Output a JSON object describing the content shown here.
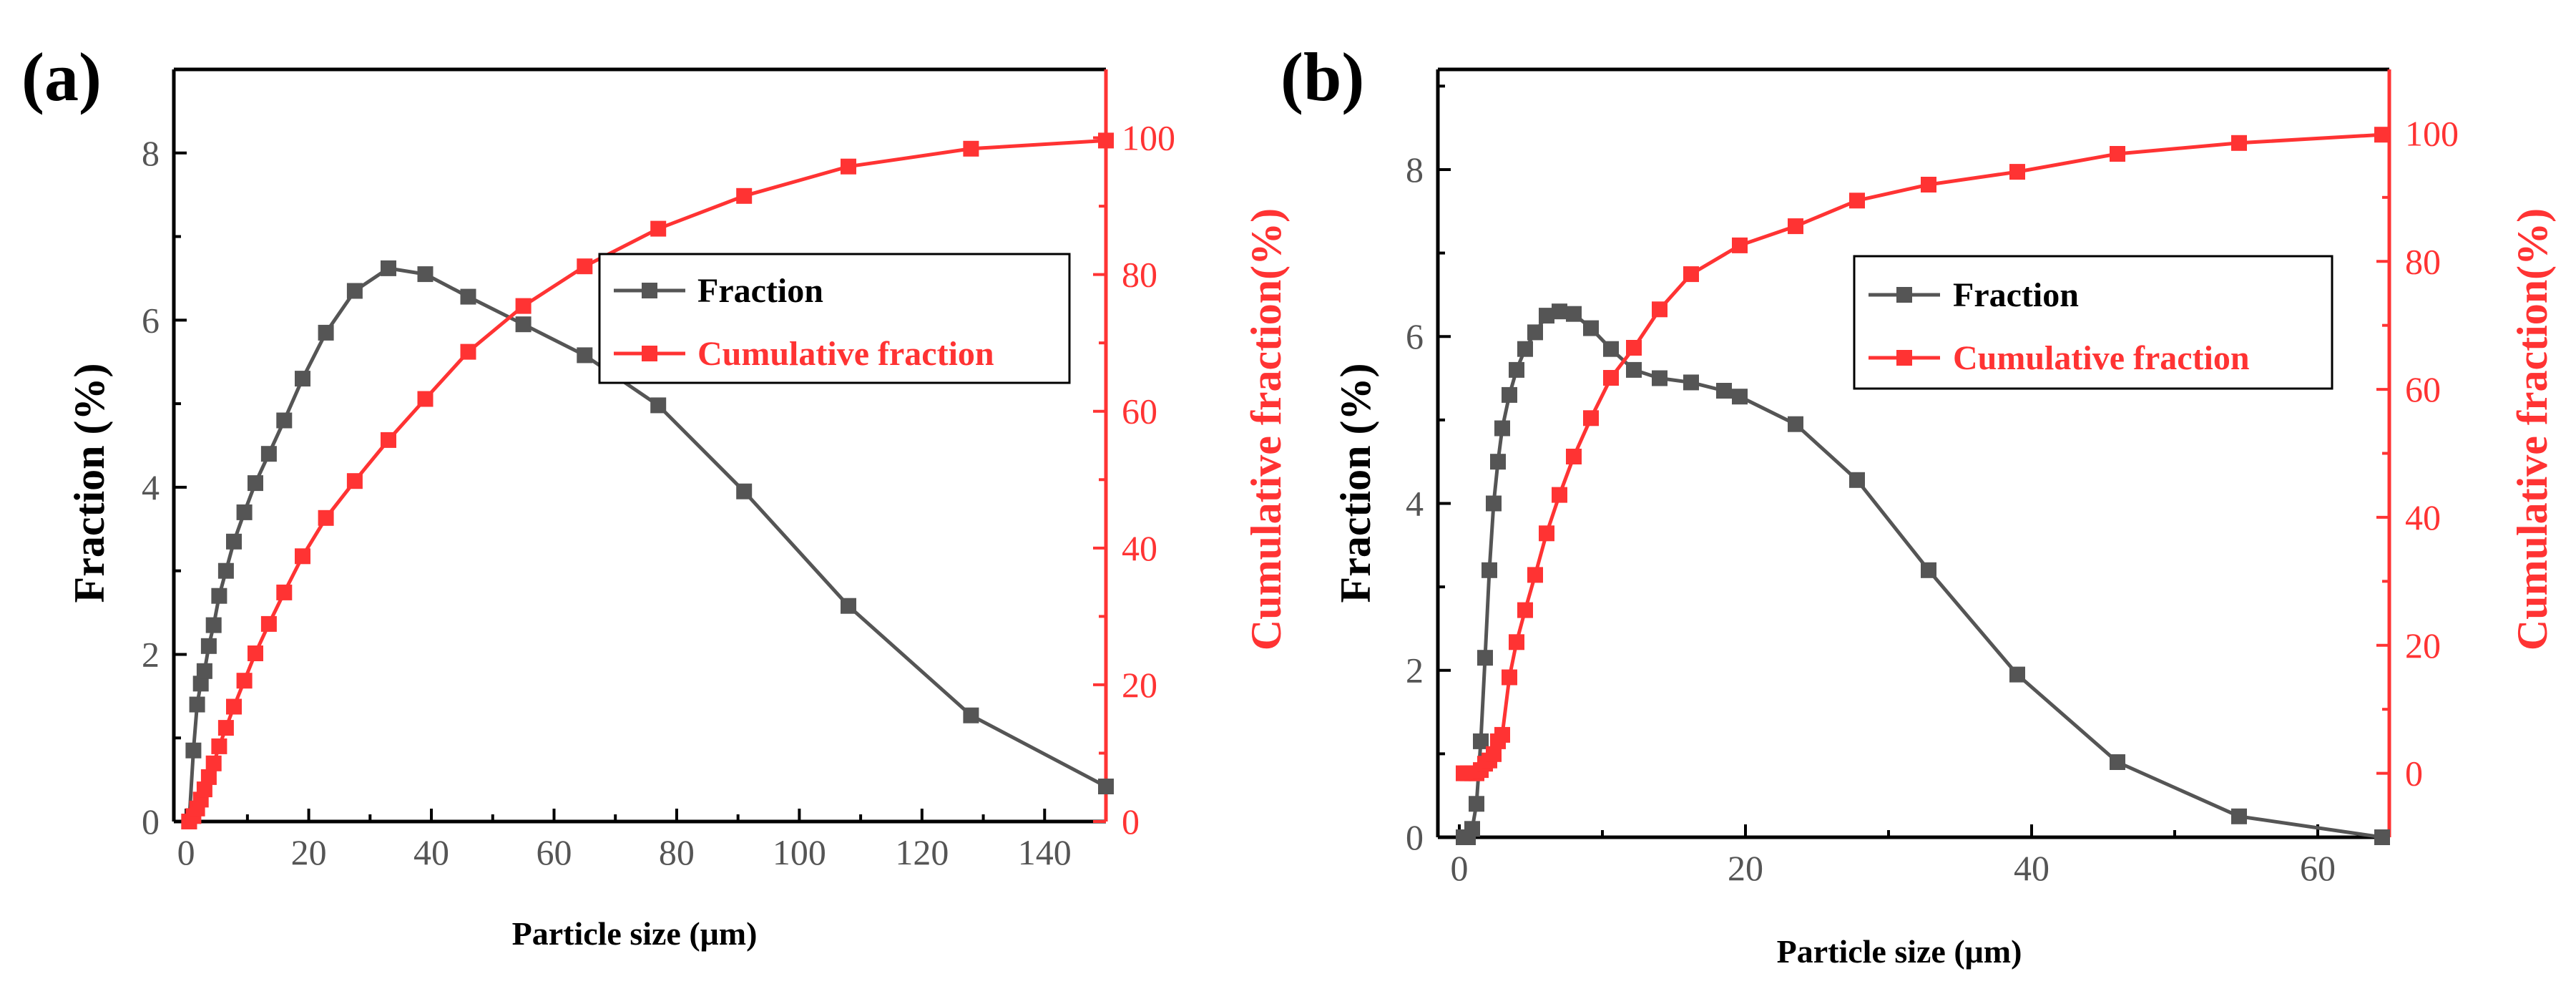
{
  "panels": [
    {
      "label": "(a)",
      "xlabel": "Particle size (μm)",
      "ylabel_left": "Fraction (%)",
      "ylabel_right": "Cumulative fraction(%)",
      "legend": {
        "series1": "Fraction",
        "series2": "Cumulative fraction"
      }
    },
    {
      "label": "(b)",
      "xlabel": "Particle size (μm)",
      "ylabel_left": "Fraction (%)",
      "ylabel_right": "Cumulative fraction(%)",
      "legend": {
        "series1": "Fraction",
        "series2": "Cumulative fraction"
      }
    }
  ],
  "colors": {
    "fraction": "#555555",
    "cumulative": "#ff3333",
    "axis": "#000000"
  },
  "chart_data": [
    {
      "type": "line",
      "xlabel": "Particle size (μm)",
      "ylabel": "Fraction (%)",
      "y2label": "Cumulative fraction(%)",
      "xlim": [
        -2,
        150
      ],
      "ylim": [
        0,
        9
      ],
      "y2lim": [
        0,
        110
      ],
      "xticks": [
        0,
        20,
        40,
        60,
        80,
        100,
        120,
        140
      ],
      "yticks": [
        0,
        2,
        4,
        6,
        8
      ],
      "y2ticks": [
        0,
        20,
        40,
        60,
        80,
        100
      ],
      "legend_position": "upper-right",
      "series": [
        {
          "name": "Fraction",
          "axis": "left",
          "marker": "square",
          "x": [
            0.5,
            1.2,
            1.8,
            2.4,
            3.0,
            3.7,
            4.5,
            5.4,
            6.5,
            7.8,
            9.5,
            11.3,
            13.5,
            16.0,
            19.0,
            22.8,
            27.5,
            33.0,
            39.0,
            46.0,
            55.0,
            65.0,
            77.0,
            91.0,
            108.0,
            128.0,
            150.0
          ],
          "values": [
            0.0,
            0.85,
            1.4,
            1.65,
            1.8,
            2.1,
            2.35,
            2.7,
            3.0,
            3.35,
            3.7,
            4.05,
            4.4,
            4.8,
            5.3,
            5.85,
            6.35,
            6.62,
            6.55,
            6.28,
            5.95,
            5.58,
            4.98,
            3.95,
            2.58,
            1.27,
            0.42
          ]
        },
        {
          "name": "Cumulative fraction",
          "axis": "right",
          "marker": "square",
          "x": [
            0.5,
            1.2,
            1.8,
            2.4,
            3.0,
            3.7,
            4.5,
            5.4,
            6.5,
            7.8,
            9.5,
            11.3,
            13.5,
            16.0,
            19.0,
            22.8,
            27.5,
            33.0,
            39.0,
            46.0,
            55.0,
            65.0,
            77.0,
            91.0,
            108.0,
            128.0,
            150.0
          ],
          "values": [
            0.0,
            0.8,
            1.9,
            3.2,
            4.7,
            6.5,
            8.5,
            11.0,
            13.7,
            16.8,
            20.6,
            24.6,
            28.9,
            33.5,
            38.8,
            44.4,
            49.8,
            55.8,
            61.8,
            68.7,
            75.4,
            81.2,
            86.7,
            91.5,
            95.8,
            98.4,
            99.6
          ]
        }
      ]
    },
    {
      "type": "line",
      "xlabel": "Particle size (μm)",
      "ylabel": "Fraction (%)",
      "y2label": "Cumulative fraction(%)",
      "xlim": [
        -1.5,
        65
      ],
      "ylim": [
        0,
        9.2
      ],
      "y2lim": [
        -10,
        110
      ],
      "xticks": [
        0,
        20,
        40,
        60
      ],
      "yticks": [
        0,
        2,
        4,
        6,
        8
      ],
      "y2ticks": [
        0,
        20,
        40,
        60,
        80,
        100
      ],
      "legend_position": "upper-right",
      "series": [
        {
          "name": "Fraction",
          "axis": "left",
          "marker": "square",
          "x": [
            0.3,
            0.6,
            0.9,
            1.2,
            1.5,
            1.8,
            2.1,
            2.4,
            2.7,
            3.0,
            3.5,
            4.0,
            4.6,
            5.3,
            6.1,
            7.0,
            8.0,
            9.2,
            10.6,
            12.2,
            14.0,
            16.2,
            18.5,
            19.6,
            23.5,
            27.8,
            32.8,
            39.0,
            46.0,
            54.5,
            64.5
          ],
          "values": [
            0.0,
            0.0,
            0.1,
            0.4,
            1.15,
            2.15,
            3.2,
            4.0,
            4.5,
            4.9,
            5.3,
            5.6,
            5.85,
            6.05,
            6.25,
            6.3,
            6.27,
            6.1,
            5.85,
            5.6,
            5.5,
            5.45,
            5.35,
            5.28,
            4.95,
            4.28,
            3.2,
            1.95,
            0.9,
            0.25,
            0.0
          ]
        },
        {
          "name": "Cumulative fraction",
          "axis": "right",
          "marker": "square",
          "x": [
            0.3,
            0.6,
            0.9,
            1.2,
            1.5,
            1.8,
            2.1,
            2.4,
            2.7,
            3.0,
            3.5,
            4.0,
            4.6,
            5.3,
            6.1,
            7.0,
            8.0,
            9.2,
            10.6,
            12.2,
            14.0,
            16.2,
            19.6,
            23.5,
            27.8,
            32.8,
            39.0,
            46.0,
            54.5,
            64.5
          ],
          "values": [
            0.0,
            0.0,
            0.0,
            0.0,
            0.5,
            1.5,
            2.0,
            3.0,
            5.0,
            6.0,
            15.0,
            20.5,
            25.5,
            31.0,
            37.5,
            43.5,
            49.5,
            55.5,
            61.8,
            66.5,
            72.5,
            78.0,
            82.5,
            85.5,
            89.5,
            92.0,
            94.0,
            96.8,
            98.5,
            99.8
          ]
        }
      ]
    }
  ]
}
